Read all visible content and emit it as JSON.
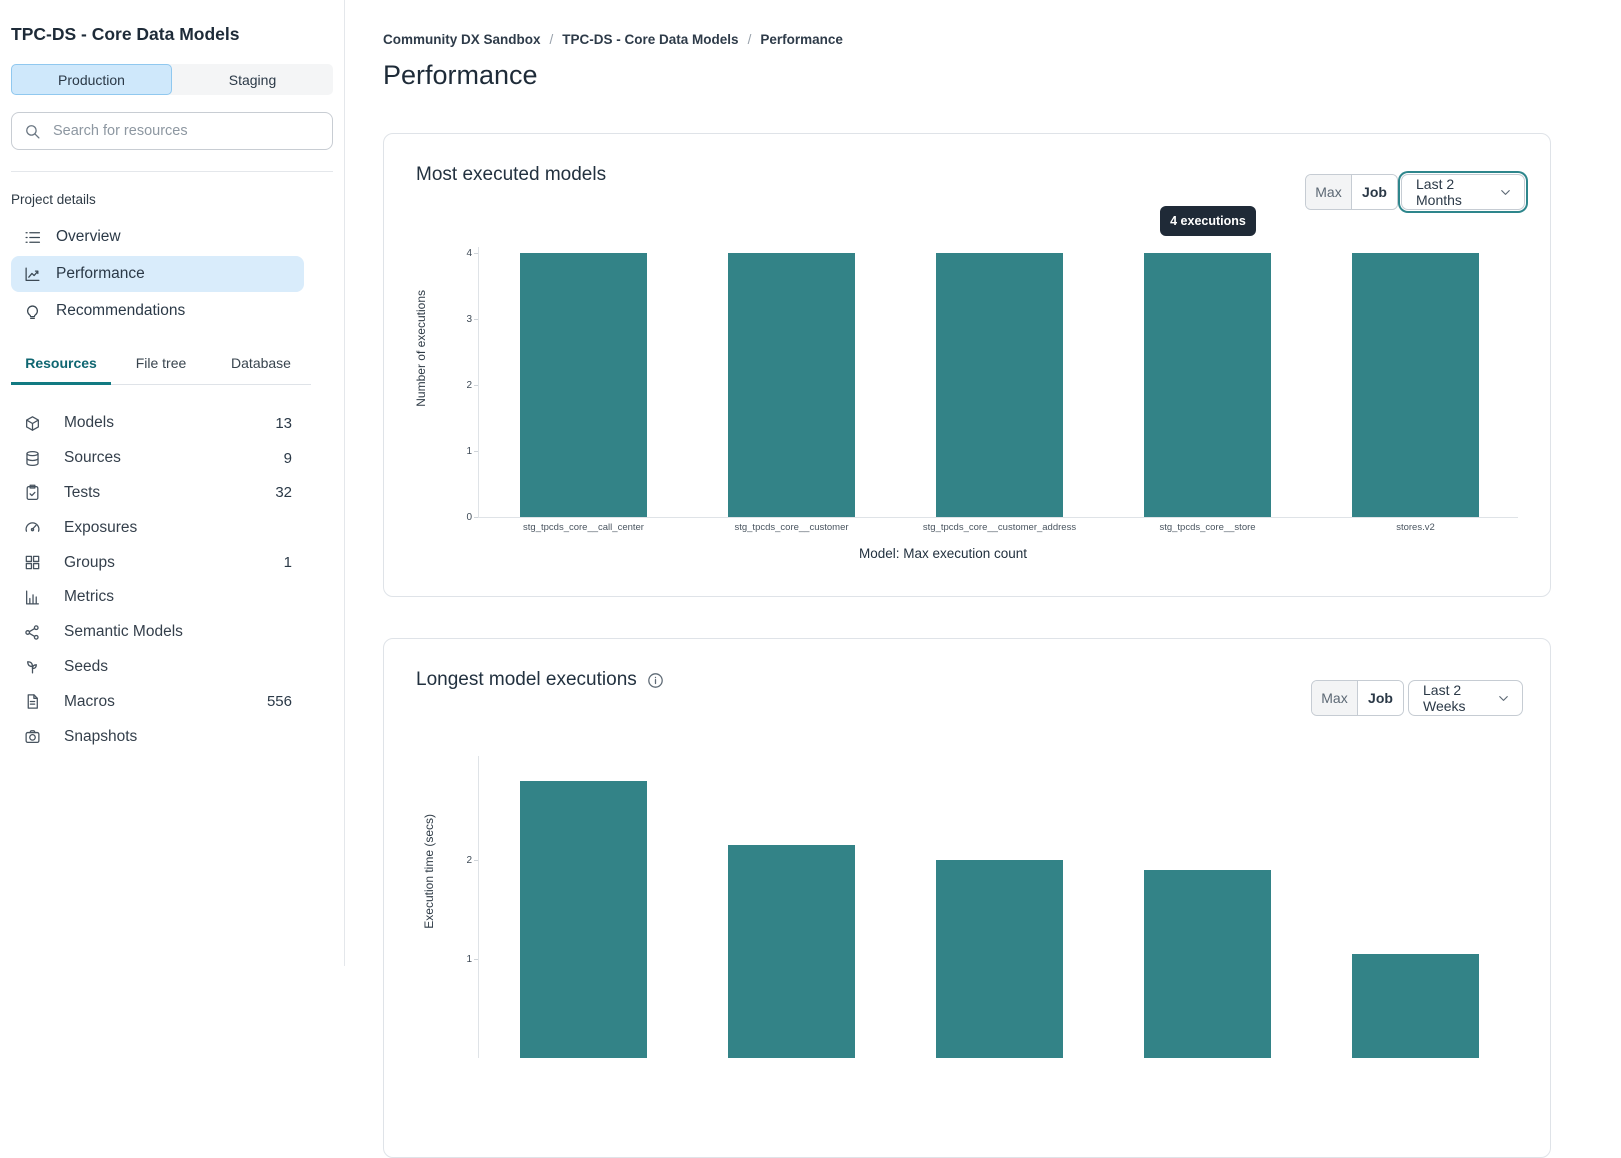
{
  "sidebar": {
    "title": "TPC-DS - Core Data Models",
    "environments": [
      {
        "label": "Production",
        "active": true
      },
      {
        "label": "Staging",
        "active": false
      }
    ],
    "search": {
      "placeholder": "Search for resources"
    },
    "section_label": "Project details",
    "nav": [
      {
        "label": "Overview",
        "icon": "list-icon",
        "active": false
      },
      {
        "label": "Performance",
        "icon": "chart-line-icon",
        "active": true
      },
      {
        "label": "Recommendations",
        "icon": "lightbulb-icon",
        "active": false
      }
    ],
    "tabs": [
      {
        "label": "Resources",
        "active": true
      },
      {
        "label": "File tree",
        "active": false
      },
      {
        "label": "Database",
        "active": false
      }
    ],
    "resources": [
      {
        "label": "Models",
        "count": "13",
        "icon": "cube-icon"
      },
      {
        "label": "Sources",
        "count": "9",
        "icon": "database-icon"
      },
      {
        "label": "Tests",
        "count": "32",
        "icon": "clipboard-check-icon"
      },
      {
        "label": "Exposures",
        "count": "",
        "icon": "gauge-icon"
      },
      {
        "label": "Groups",
        "count": "1",
        "icon": "grid-icon"
      },
      {
        "label": "Metrics",
        "count": "",
        "icon": "bar-chart-icon"
      },
      {
        "label": "Semantic Models",
        "count": "",
        "icon": "graph-icon"
      },
      {
        "label": "Seeds",
        "count": "",
        "icon": "sprout-icon"
      },
      {
        "label": "Macros",
        "count": "556",
        "icon": "file-icon"
      },
      {
        "label": "Snapshots",
        "count": "",
        "icon": "camera-icon"
      }
    ]
  },
  "main": {
    "breadcrumb": [
      "Community DX Sandbox",
      "TPC-DS - Core Data Models",
      "Performance"
    ],
    "page_title": "Performance"
  },
  "cards": [
    {
      "title": "Most executed models",
      "has_info_icon": false,
      "segments": [
        {
          "label": "Max",
          "active": true
        },
        {
          "label": "Job",
          "active": false
        }
      ],
      "range_selector": "Last 2 Months",
      "range_focused": true
    },
    {
      "title": "Longest model executions",
      "has_info_icon": true,
      "segments": [
        {
          "label": "Max",
          "active": true
        },
        {
          "label": "Job",
          "active": false
        }
      ],
      "range_selector": "Last 2 Weeks",
      "range_focused": false
    }
  ],
  "tooltip": {
    "text": "4 executions"
  },
  "colors": {
    "bar": "#338387",
    "accent_teal": "#127a82",
    "active_blue_bg": "#d9ecfb",
    "tooltip_bg": "#1f2a37"
  },
  "chart_data": [
    {
      "type": "bar",
      "title": "Most executed models",
      "categories": [
        "stg_tpcds_core__call_center",
        "stg_tpcds_core__customer",
        "stg_tpcds_core__customer_address",
        "stg_tpcds_core__store",
        "stores.v2"
      ],
      "values": [
        4,
        4,
        4,
        4,
        4
      ],
      "xlabel": "Model: Max execution count",
      "ylabel": "Number of executions",
      "ylim": [
        0,
        4
      ],
      "yticks": [
        0,
        1,
        2,
        3,
        4
      ],
      "grid": false,
      "legend": "none",
      "bar_color": "#338387",
      "tooltip": {
        "text": "4 executions",
        "bar_index": 3
      }
    },
    {
      "type": "bar",
      "title": "Longest model executions",
      "categories": [
        "",
        "",
        "",
        "",
        ""
      ],
      "values": [
        2.8,
        2.15,
        2.0,
        1.9,
        1.05
      ],
      "xlabel": "",
      "ylabel": "Execution time (secs)",
      "ylim": [
        0,
        3
      ],
      "yticks": [
        1,
        2
      ],
      "grid": false,
      "legend": "none",
      "bar_color": "#338387",
      "note": "chart bottom is cut off by the viewport; only y ticks 1 and 2 are visible"
    }
  ]
}
